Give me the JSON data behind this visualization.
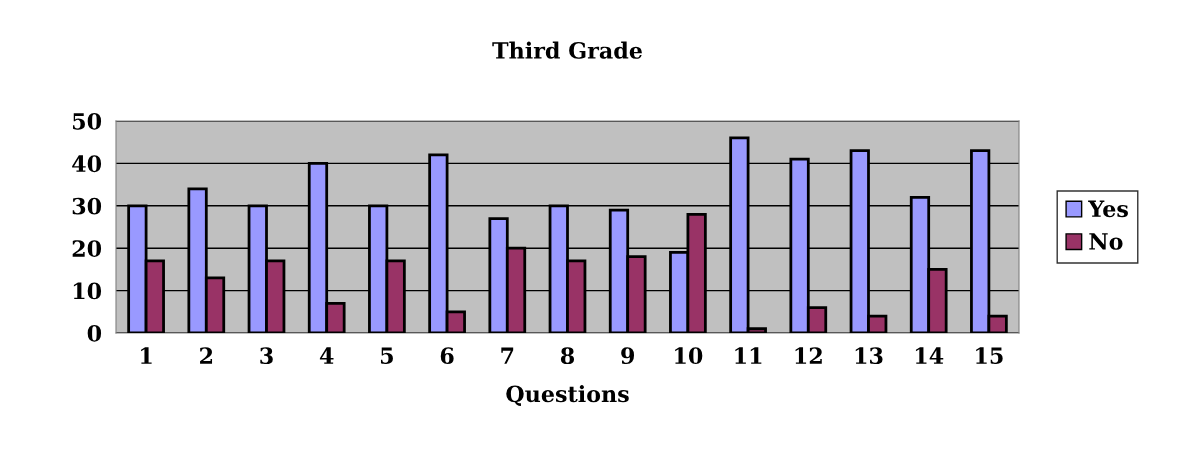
{
  "chart_data": {
    "type": "bar",
    "title": "Third Grade",
    "xlabel": "Questions",
    "categories": [
      "1",
      "2",
      "3",
      "4",
      "5",
      "6",
      "7",
      "8",
      "9",
      "10",
      "11",
      "12",
      "13",
      "14",
      "15"
    ],
    "series": [
      {
        "name": "Yes",
        "color": "#9999ff",
        "values": [
          30,
          34,
          30,
          40,
          30,
          42,
          27,
          30,
          29,
          19,
          46,
          41,
          43,
          32,
          43
        ]
      },
      {
        "name": "No",
        "color": "#993366",
        "values": [
          17,
          13,
          17,
          7,
          17,
          5,
          20,
          17,
          18,
          28,
          1,
          6,
          4,
          15,
          4
        ]
      }
    ],
    "ylim": [
      0,
      50
    ],
    "yticks": [
      0,
      10,
      20,
      30,
      40,
      50
    ],
    "grid": "y",
    "legend": "right"
  }
}
